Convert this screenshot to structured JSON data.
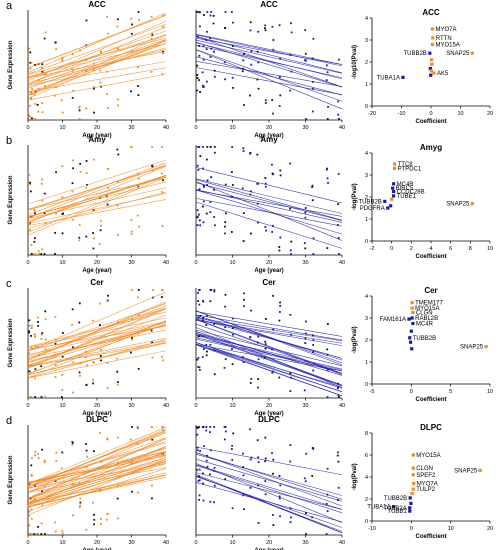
{
  "figure": {
    "panels": [
      {
        "letter": "a",
        "region": "ACC",
        "up": {
          "title": "ACC",
          "xlabel": "Age (year)",
          "ylabel": "Gene Expression",
          "xticks": [
            "0",
            "10",
            "20",
            "30",
            "40"
          ],
          "color": "#f08a24",
          "direction": "up",
          "n_lines": 24
        },
        "down": {
          "title": "ACC",
          "xlabel": "Age (year)",
          "ylabel": "",
          "xticks": [
            "0",
            "10",
            "20",
            "30",
            "40"
          ],
          "color": "#1a1aa6",
          "direction": "down",
          "n_lines": 14
        },
        "volcano": {
          "title": "ACC",
          "xlabel": "Coefficient",
          "ylabel": "-log10(Pval)",
          "xticks": [
            "-20",
            "-10",
            "0",
            "10",
            "20"
          ],
          "yticks": [
            "0",
            "1",
            "2",
            "3",
            "4"
          ],
          "xlim": [
            -20,
            20
          ],
          "ylim": [
            0,
            4
          ]
        }
      },
      {
        "letter": "b",
        "region": "Amy",
        "up": {
          "title": "Amy",
          "xlabel": "Age (year)",
          "ylabel": "Gene Expression",
          "xticks": [
            "0",
            "10",
            "20",
            "30",
            "40"
          ],
          "color": "#f08a24",
          "direction": "up",
          "n_lines": 18
        },
        "down": {
          "title": "Amy",
          "xlabel": "Age (year)",
          "ylabel": "",
          "xticks": [
            "0",
            "10",
            "20",
            "30",
            "40"
          ],
          "color": "#1a1aa6",
          "direction": "down",
          "n_lines": 10
        },
        "volcano": {
          "title": "Amyg",
          "xlabel": "Coefficient",
          "ylabel": "-log(Pval)",
          "xticks": [
            "-2",
            "0",
            "2",
            "4",
            "6",
            "8",
            "10"
          ],
          "yticks": [
            "0",
            "1",
            "2",
            "3",
            "4"
          ],
          "xlim": [
            -2,
            10
          ],
          "ylim": [
            0,
            4
          ]
        }
      },
      {
        "letter": "c",
        "region": "Cer",
        "up": {
          "title": "Cer",
          "xlabel": "Age (year)",
          "ylabel": "Gene Expression",
          "xticks": [
            "0",
            "10",
            "20",
            "30",
            "40"
          ],
          "color": "#f08a24",
          "direction": "up",
          "n_lines": 30
        },
        "down": {
          "title": "Cer",
          "xlabel": "Age (year)",
          "ylabel": "",
          "xticks": [
            "0",
            "10",
            "20",
            "30",
            "40"
          ],
          "color": "#1a1aa6",
          "direction": "down",
          "n_lines": 30
        },
        "volcano": {
          "title": "Cer",
          "xlabel": "Coefficient",
          "ylabel": "-log(Pval)",
          "xticks": [
            "-5",
            "0",
            "5",
            "10"
          ],
          "yticks": [
            "0",
            "1",
            "2",
            "3",
            "4"
          ],
          "xlim": [
            -5,
            10
          ],
          "ylim": [
            0,
            4
          ]
        }
      },
      {
        "letter": "d",
        "region": "DLPC",
        "up": {
          "title": "DLPC",
          "xlabel": "Age (year)",
          "ylabel": "Gene Expression",
          "xticks": [
            "0",
            "10",
            "20",
            "30",
            "40"
          ],
          "color": "#f08a24",
          "direction": "up",
          "n_lines": 40
        },
        "down": {
          "title": "DLPC",
          "xlabel": "Age (year)",
          "ylabel": "",
          "xticks": [
            "0",
            "10",
            "20",
            "30",
            "40"
          ],
          "color": "#1a1aa6",
          "direction": "down",
          "n_lines": 14
        },
        "volcano": {
          "title": "DLPC",
          "xlabel": "Coefficient",
          "ylabel": "-log(Pval)",
          "xticks": [
            "-10",
            "0",
            "10",
            "20"
          ],
          "yticks": [
            "0",
            "2",
            "4",
            "6",
            "8"
          ],
          "xlim": [
            -10,
            20
          ],
          "ylim": [
            0,
            8
          ]
        }
      }
    ]
  },
  "chart_data": [
    {
      "type": "scatter",
      "title": "ACC",
      "xlabel": "Coefficient",
      "ylabel": "-log10(Pval)",
      "xlim": [
        -20,
        20
      ],
      "ylim": [
        0,
        4
      ],
      "points": [
        {
          "label": "MYO7A",
          "x": 0.5,
          "y": 3.5,
          "color": "#f08a24"
        },
        {
          "label": "RTTN",
          "x": 0.6,
          "y": 3.1,
          "color": "#f08a24"
        },
        {
          "label": "MYO15A",
          "x": 0.5,
          "y": 2.8,
          "color": "#f08a24"
        },
        {
          "label": "TUBB2B",
          "x": -0.4,
          "y": 2.4,
          "color": "#1a1aa6"
        },
        {
          "label": "SNAP25",
          "x": 14,
          "y": 2.4,
          "color": "#f08a24"
        },
        {
          "label": "AK5",
          "x": 1,
          "y": 1.5,
          "color": "#f08a24"
        },
        {
          "label": "TUBA1A",
          "x": -9.5,
          "y": 1.3,
          "color": "#1a1aa6"
        },
        {
          "label": "",
          "x": 0.2,
          "y": 2.1,
          "color": "#f08a24"
        },
        {
          "label": "",
          "x": 0.3,
          "y": 1.9,
          "color": "#f08a24"
        },
        {
          "label": "",
          "x": -0.2,
          "y": 1.7,
          "color": "#1a1aa6"
        },
        {
          "label": "",
          "x": 0.1,
          "y": 1.6,
          "color": "#f08a24"
        },
        {
          "label": "",
          "x": -0.1,
          "y": 1.4,
          "color": "#1a1aa6"
        }
      ]
    },
    {
      "type": "scatter",
      "title": "Amyg",
      "xlabel": "Coefficient",
      "ylabel": "-log(Pval)",
      "xlim": [
        -2,
        10
      ],
      "ylim": [
        0,
        4
      ],
      "points": [
        {
          "label": "TTC8",
          "x": 0.3,
          "y": 3.5,
          "color": "#f08a24"
        },
        {
          "label": "PTPDC1",
          "x": 0.3,
          "y": 3.3,
          "color": "#f08a24"
        },
        {
          "label": "MC4R",
          "x": 0.2,
          "y": 2.6,
          "color": "#1a1aa6"
        },
        {
          "label": "BIRC5",
          "x": 0.1,
          "y": 2.4,
          "color": "#1a1aa6"
        },
        {
          "label": "CCDC28B",
          "x": 0.2,
          "y": 2.25,
          "color": "#1a1aa6"
        },
        {
          "label": "TUBE1",
          "x": 0.2,
          "y": 2.05,
          "color": "#1a1aa6"
        },
        {
          "label": "TUBB2B",
          "x": -0.7,
          "y": 1.8,
          "color": "#1a1aa6"
        },
        {
          "label": "SNAP25",
          "x": 8.2,
          "y": 1.7,
          "color": "#f08a24"
        },
        {
          "label": "PDGFRA",
          "x": -0.4,
          "y": 1.5,
          "color": "#1a1aa6"
        },
        {
          "label": "",
          "x": 0.0,
          "y": 1.9,
          "color": "#f08a24"
        },
        {
          "label": "",
          "x": -0.1,
          "y": 1.6,
          "color": "#1a1aa6"
        }
      ]
    },
    {
      "type": "scatter",
      "title": "Cer",
      "xlabel": "Coefficient",
      "ylabel": "-log(Pval)",
      "xlim": [
        -5,
        10
      ],
      "ylim": [
        0,
        4
      ],
      "points": [
        {
          "label": "TMEM177",
          "x": 0.1,
          "y": 3.7,
          "color": "#f08a24"
        },
        {
          "label": "MYO15A",
          "x": 0.1,
          "y": 3.45,
          "color": "#f08a24"
        },
        {
          "label": "CLGN",
          "x": 0.2,
          "y": 3.25,
          "color": "#f08a24"
        },
        {
          "label": "FAM161A",
          "x": -0.3,
          "y": 2.95,
          "color": "#1a1aa6"
        },
        {
          "label": "RABL2B",
          "x": 0.1,
          "y": 3.0,
          "color": "#1a1aa6"
        },
        {
          "label": "MC4R",
          "x": 0.2,
          "y": 2.75,
          "color": "#1a1aa6"
        },
        {
          "label": "TUBB2B",
          "x": -0.2,
          "y": 2.1,
          "color": "#1a1aa6"
        },
        {
          "label": "SNAP25",
          "x": 9.5,
          "y": 1.7,
          "color": "#f08a24"
        },
        {
          "label": "",
          "x": 0.0,
          "y": 2.4,
          "color": "#1a1aa6"
        },
        {
          "label": "",
          "x": -0.1,
          "y": 1.9,
          "color": "#1a1aa6"
        },
        {
          "label": "",
          "x": 0.05,
          "y": 1.6,
          "color": "#1a1aa6"
        }
      ]
    },
    {
      "type": "scatter",
      "title": "DLPC",
      "xlabel": "Coefficient",
      "ylabel": "-log(Pval)",
      "xlim": [
        -10,
        20
      ],
      "ylim": [
        0,
        8
      ],
      "points": [
        {
          "label": "MYO15A",
          "x": 0.5,
          "y": 6.0,
          "color": "#f08a24"
        },
        {
          "label": "CLGN",
          "x": 0.5,
          "y": 4.8,
          "color": "#f08a24"
        },
        {
          "label": "SPEF2",
          "x": 0.5,
          "y": 4.2,
          "color": "#f08a24"
        },
        {
          "label": "SNAP25",
          "x": 17.5,
          "y": 4.6,
          "color": "#f08a24"
        },
        {
          "label": "MYO7A",
          "x": 0.6,
          "y": 3.4,
          "color": "#f08a24"
        },
        {
          "label": "TULP2",
          "x": 0.5,
          "y": 2.9,
          "color": "#f08a24"
        },
        {
          "label": "TUBB2B",
          "x": -0.3,
          "y": 2.1,
          "color": "#1a1aa6"
        },
        {
          "label": "TUBA1A",
          "x": -4.5,
          "y": 1.3,
          "color": "#1a1aa6"
        },
        {
          "label": "TUBB2A",
          "x": -0.4,
          "y": 1.2,
          "color": "#1a1aa6"
        },
        {
          "label": "TUBB1",
          "x": -0.4,
          "y": 0.9,
          "color": "#1a1aa6"
        },
        {
          "label": "",
          "x": 0.2,
          "y": 2.5,
          "color": "#f08a24"
        },
        {
          "label": "",
          "x": -0.1,
          "y": 1.6,
          "color": "#1a1aa6"
        }
      ]
    }
  ]
}
